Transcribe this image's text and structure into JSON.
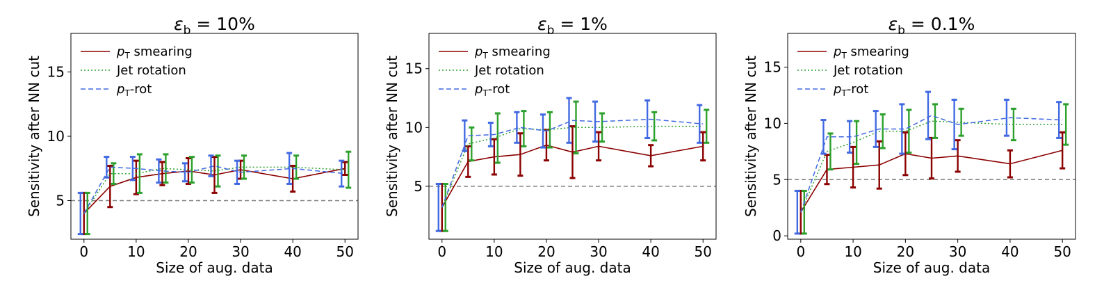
{
  "chart_data": [
    {
      "type": "line",
      "title_symbol": "ε",
      "title_sub": "b",
      "title_rest": " = 10%",
      "xlabel": "Size of aug. data",
      "ylabel": "Sensitivity after NN cut",
      "xlim": [
        -2.5,
        52.5
      ],
      "ylim": [
        2.0,
        18.0
      ],
      "xticks": [
        "0",
        "10",
        "20",
        "30",
        "40",
        "50"
      ],
      "yticks": [
        "5",
        "10",
        "15"
      ],
      "threshold": 5.0,
      "x": [
        0,
        5,
        10,
        15,
        20,
        25,
        30,
        40,
        50
      ],
      "series": [
        {
          "name": "smearing",
          "legend_math": "p",
          "legend_sub": "T",
          "legend_text": " smearing",
          "color": "#8b0000",
          "style": "solid",
          "values": [
            4.0,
            6.1,
            6.8,
            7.1,
            7.3,
            7.0,
            7.4,
            6.7,
            7.5
          ],
          "err": [
            1.6,
            1.6,
            1.3,
            0.9,
            1.0,
            1.4,
            0.7,
            1.0,
            0.5
          ]
        },
        {
          "name": "rotation",
          "legend_text": "Jet rotation",
          "color": "#2ca02c",
          "style": "dotted",
          "values": [
            4.0,
            7.1,
            7.1,
            7.5,
            7.4,
            7.3,
            7.6,
            7.6,
            7.4
          ],
          "err": [
            1.6,
            0.8,
            1.5,
            1.1,
            1.0,
            1.2,
            0.9,
            0.9,
            1.4
          ]
        },
        {
          "name": "pt-rot",
          "legend_math": "p",
          "legend_sub": "T",
          "legend_text": "-rot",
          "color": "#4169e1",
          "style": "dashed",
          "values": [
            4.0,
            7.6,
            7.5,
            7.3,
            7.2,
            7.7,
            7.2,
            7.5,
            7.1
          ],
          "err": [
            1.6,
            0.8,
            0.9,
            0.9,
            0.7,
            0.8,
            0.9,
            1.2,
            1.0
          ]
        }
      ]
    },
    {
      "type": "line",
      "title_symbol": "ε",
      "title_sub": "b",
      "title_rest": " = 1%",
      "xlabel": "Size of aug. data",
      "ylabel": "Sensitivity after NN cut",
      "xlim": [
        -2.5,
        52.5
      ],
      "ylim": [
        0.5,
        18.0
      ],
      "xticks": [
        "0",
        "10",
        "20",
        "30",
        "40",
        "50"
      ],
      "yticks": [
        "5",
        "10",
        "15"
      ],
      "threshold": 5.0,
      "x": [
        0,
        5,
        10,
        15,
        20,
        25,
        30,
        40,
        50
      ],
      "series": [
        {
          "name": "smearing",
          "legend_math": "p",
          "legend_sub": "T",
          "legend_text": " smearing",
          "color": "#8b0000",
          "style": "solid",
          "values": [
            3.2,
            7.1,
            7.5,
            7.7,
            8.5,
            7.9,
            8.4,
            7.6,
            8.4
          ],
          "err": [
            2.0,
            1.3,
            1.5,
            1.8,
            1.3,
            2.2,
            1.2,
            0.9,
            1.2
          ]
        },
        {
          "name": "rotation",
          "legend_text": "Jet rotation",
          "color": "#2ca02c",
          "style": "dotted",
          "values": [
            3.2,
            8.6,
            9.1,
            9.9,
            9.8,
            10.0,
            10.0,
            10.1,
            10.1
          ],
          "err": [
            2.0,
            1.4,
            2.1,
            1.5,
            1.5,
            2.2,
            1.2,
            1.2,
            1.4
          ]
        },
        {
          "name": "pt-rot",
          "legend_math": "p",
          "legend_sub": "T",
          "legend_text": "-rot",
          "color": "#4169e1",
          "style": "dashed",
          "values": [
            3.2,
            9.3,
            9.4,
            10.0,
            9.7,
            10.6,
            10.5,
            10.7,
            10.3
          ],
          "err": [
            2.0,
            1.3,
            1.0,
            1.3,
            1.4,
            1.9,
            1.7,
            1.6,
            1.6
          ]
        }
      ]
    },
    {
      "type": "line",
      "title_symbol": "ε",
      "title_sub": "b",
      "title_rest": " = 0.1%",
      "xlabel": "Size of aug. data",
      "ylabel": "Sensitivity after NN cut",
      "xlim": [
        -2.5,
        52.5
      ],
      "ylim": [
        -0.3,
        18.0
      ],
      "xticks": [
        "0",
        "10",
        "20",
        "30",
        "40",
        "50"
      ],
      "yticks": [
        "0",
        "5",
        "10",
        "15"
      ],
      "threshold": 5.0,
      "x": [
        0,
        5,
        10,
        15,
        20,
        25,
        30,
        40,
        50
      ],
      "series": [
        {
          "name": "smearing",
          "legend_math": "p",
          "legend_sub": "T",
          "legend_text": " smearing",
          "color": "#8b0000",
          "style": "solid",
          "values": [
            2.1,
            5.9,
            6.1,
            6.3,
            7.3,
            6.9,
            7.1,
            6.4,
            7.6
          ],
          "err": [
            1.9,
            1.3,
            1.8,
            2.1,
            1.9,
            1.8,
            1.4,
            1.2,
            1.6
          ]
        },
        {
          "name": "rotation",
          "legend_text": "Jet rotation",
          "color": "#2ca02c",
          "style": "dotted",
          "values": [
            2.1,
            7.5,
            8.3,
            9.3,
            9.3,
            10.2,
            10.1,
            9.9,
            9.9
          ],
          "err": [
            1.9,
            1.6,
            1.9,
            1.5,
            1.9,
            1.5,
            1.2,
            1.4,
            1.8
          ]
        },
        {
          "name": "pt-rot",
          "legend_math": "p",
          "legend_sub": "T",
          "legend_text": "-rot",
          "color": "#4169e1",
          "style": "dashed",
          "values": [
            2.1,
            8.8,
            8.8,
            9.5,
            9.5,
            10.7,
            9.9,
            10.5,
            10.3
          ],
          "err": [
            1.9,
            1.5,
            1.4,
            1.6,
            2.2,
            2.1,
            2.2,
            1.6,
            1.6
          ]
        }
      ]
    }
  ]
}
